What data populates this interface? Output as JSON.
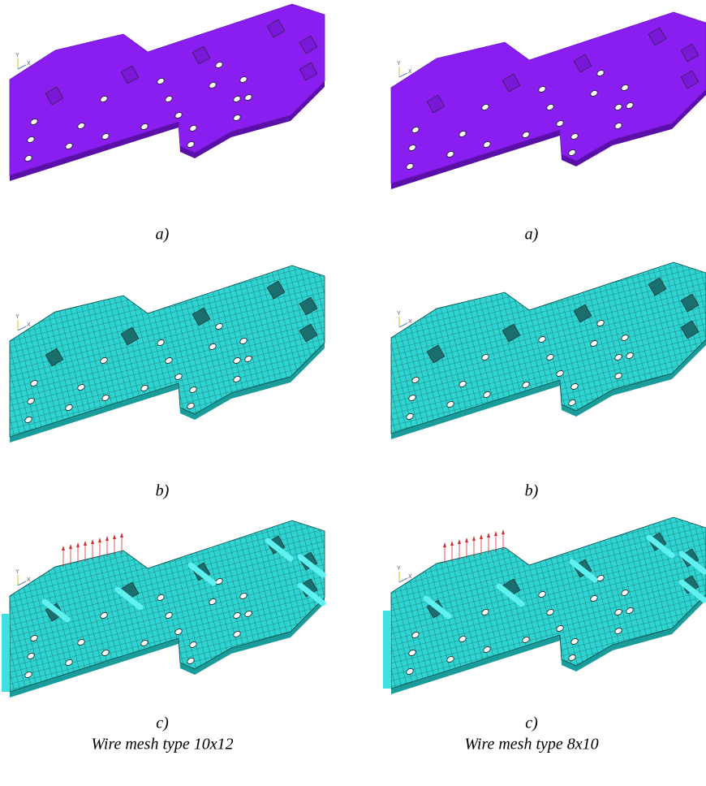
{
  "panels": [
    {
      "label": "a)",
      "triad": [
        "Y",
        "X"
      ]
    },
    {
      "label": "a)",
      "triad": [
        "Y",
        "X"
      ]
    },
    {
      "label": "b)",
      "triad": [
        "Y",
        "X"
      ]
    },
    {
      "label": "b)",
      "triad": [
        "Y",
        "X"
      ]
    },
    {
      "label": "c)",
      "triad": [
        "Y",
        "X"
      ],
      "caption": "Wire mesh type 10x12"
    },
    {
      "label": "c)",
      "triad": [
        "Y",
        "X"
      ],
      "caption": "Wire mesh type 8x10"
    }
  ]
}
